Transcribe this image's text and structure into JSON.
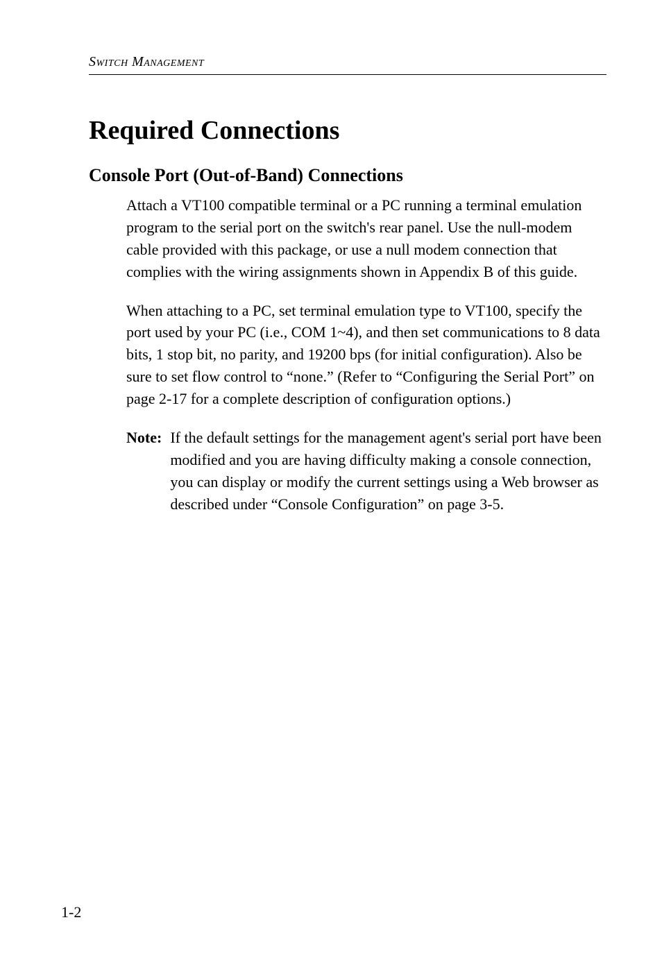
{
  "header": {
    "text": "Switch Management"
  },
  "main_title": "Required Connections",
  "sub_title": "Console Port (Out-of-Band) Connections",
  "para1": "Attach a VT100 compatible terminal or a PC running a terminal emulation program to the serial port on the switch's rear panel. Use the null-modem cable provided with this package, or use a null modem connection that complies with the wiring assignments shown in Appendix B of this guide.",
  "para2": "When attaching to a PC, set terminal emulation type to VT100, specify the port used by your PC (i.e., COM 1~4), and then set communications to 8 data bits, 1 stop bit, no parity, and 19200 bps (for initial configuration). Also be sure to set flow control to “none.” (Refer to “Configuring the Serial Port” on page 2-17 for a complete description of configuration options.)",
  "note": {
    "label": "Note:",
    "text": "If the default settings for the management agent's serial port have been modified and you are having difficulty making a console connection, you can display or modify the current settings using a Web browser as described under “Console Configuration” on page 3-5."
  },
  "page_number": "1-2"
}
